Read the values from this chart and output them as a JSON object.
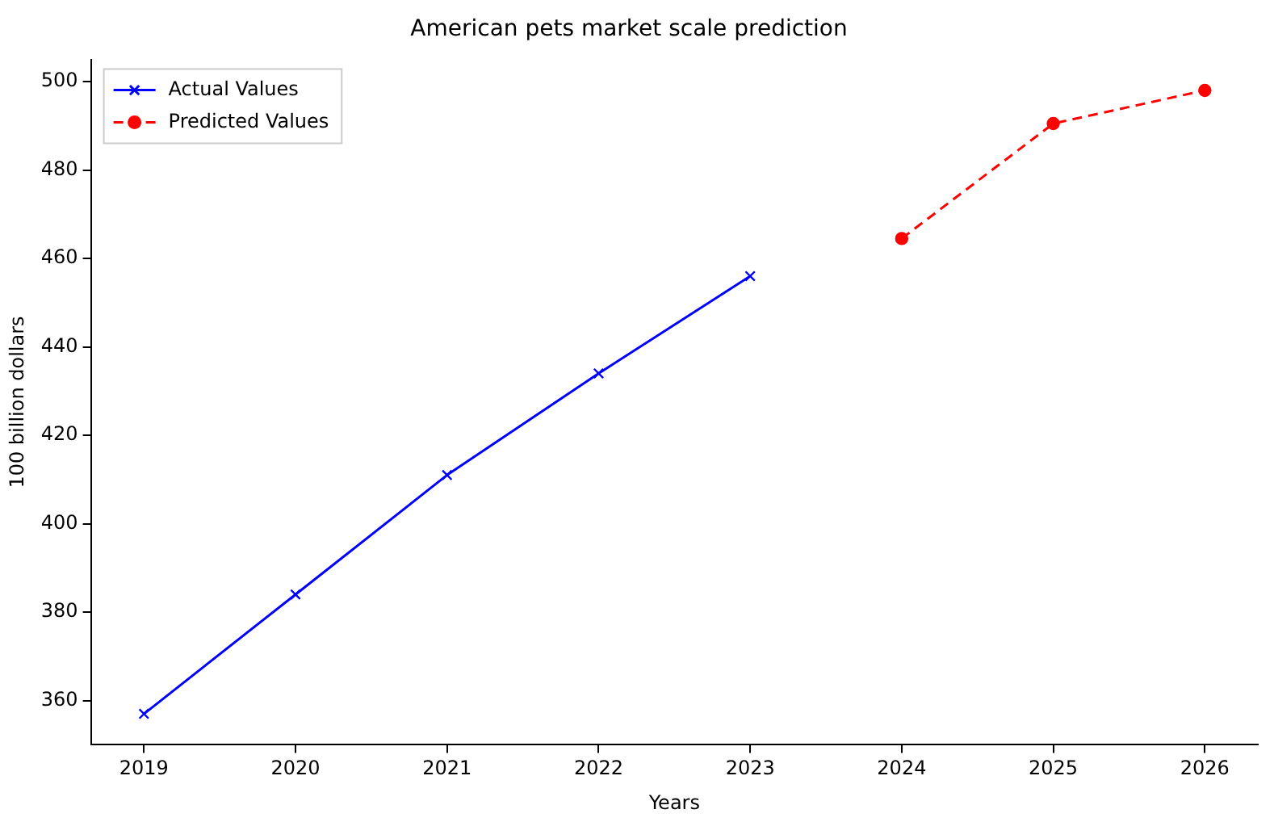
{
  "chart_data": {
    "type": "line",
    "title": "American pets market scale prediction",
    "xlabel": "Years",
    "ylabel": "100 billion dollars",
    "xlim": [
      2018.65,
      2026.35
    ],
    "xticks": [
      2019,
      2020,
      2021,
      2022,
      2023,
      2024,
      2025,
      2026
    ],
    "ylim": [
      350,
      505
    ],
    "yticks": [
      360,
      380,
      400,
      420,
      440,
      460,
      480,
      500
    ],
    "grid": false,
    "legend": "top left",
    "series": [
      {
        "name": "Actual Values",
        "color": "#0000ff",
        "marker": "cross",
        "line_style": "solid",
        "x": [
          2019,
          2020,
          2021,
          2022,
          2023
        ],
        "values": [
          357,
          384,
          411,
          434,
          456
        ]
      },
      {
        "name": "Predicted Values",
        "color": "#ff0000",
        "marker": "circle",
        "line_style": "dashed",
        "x": [
          2024,
          2025,
          2026
        ],
        "values": [
          464.5,
          490.5,
          498
        ]
      }
    ]
  }
}
